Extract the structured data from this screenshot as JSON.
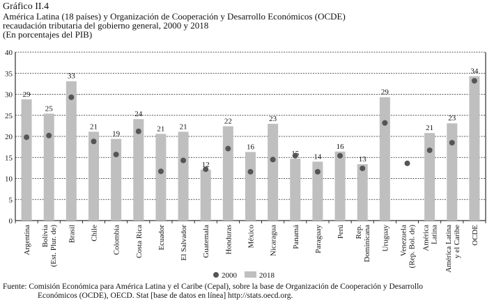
{
  "header": {
    "graph_number": "Gráfico II.4",
    "title_line1": "América Latina (18 países) y Organización de Cooperación y Desarrollo Económicos (OCDE)",
    "title_line2": "recaudación tributaria del gobierno general, 2000 y 2018",
    "subtitle": "(En porcentajes del PIB)"
  },
  "source": {
    "line1": "Fuente: Comisión Económica para América Latina y el Caribe (Cepal), sobre la base de Organización de Cooperación y Desarrollo",
    "line2": "Económicos (OCDE), OECD. Stat [base de datos en línea] http://stats.oecd.org."
  },
  "chart_data": {
    "type": "bar",
    "ylim": [
      0,
      40
    ],
    "yticks": [
      0,
      5,
      10,
      15,
      20,
      25,
      30,
      35,
      40
    ],
    "grid": true,
    "legend_position": "bottom",
    "categories": [
      [
        "Argentina"
      ],
      [
        "Bolivia",
        "(Est. Plur. de)"
      ],
      [
        "Brasil"
      ],
      [
        "Chile"
      ],
      [
        "Colombia"
      ],
      [
        "Costa Rica"
      ],
      [
        "Ecuador"
      ],
      [
        "El Salvador"
      ],
      [
        "Guatemala"
      ],
      [
        "Honduras"
      ],
      [
        "México"
      ],
      [
        "Nicaragua"
      ],
      [
        "Panamá"
      ],
      [
        "Paraguay"
      ],
      [
        "Perú"
      ],
      [
        "Rep.",
        "Dominicana"
      ],
      [
        "Uruguay"
      ],
      [
        "Venezuela",
        "(Rep. Bol. de)"
      ],
      [
        "América",
        "Latina"
      ],
      [
        "América Latina",
        "y el Caribe"
      ],
      [
        "OCDE"
      ]
    ],
    "series": [
      {
        "name": "2000",
        "kind": "point",
        "color": "#555555",
        "values": [
          19.8,
          20.2,
          29.3,
          18.8,
          15.7,
          21.2,
          11.7,
          14.3,
          12.2,
          17.1,
          11.6,
          14.5,
          15.4,
          11.6,
          15.4,
          12.4,
          23.2,
          13.6,
          16.7,
          18.5,
          33.2
        ]
      },
      {
        "name": "2018",
        "kind": "bar",
        "color": "#bfbfbf",
        "values": [
          28.8,
          25.4,
          33.1,
          21.1,
          19.4,
          24.1,
          20.6,
          21.1,
          12.1,
          22.4,
          16.3,
          23.0,
          14.7,
          14.0,
          16.4,
          13.4,
          29.3,
          null,
          20.8,
          23.1,
          34.3
        ],
        "labels": [
          "29",
          "25",
          "33",
          "21",
          "19",
          "24",
          "21",
          "21",
          "12",
          "22",
          "16",
          "23",
          "15",
          "14",
          "16",
          "13",
          "29",
          "",
          "21",
          "23",
          "34"
        ]
      }
    ]
  }
}
